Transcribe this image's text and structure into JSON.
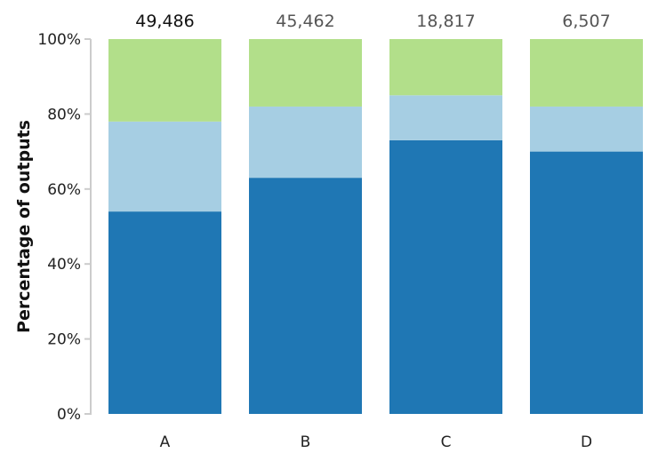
{
  "chart_data": {
    "type": "bar",
    "stacked": true,
    "normalized": true,
    "categories": [
      "A",
      "B",
      "C",
      "D"
    ],
    "totals": [
      "49,486",
      "45,462",
      "18,817",
      "6,507"
    ],
    "series": [
      {
        "values": [
          54,
          63,
          73,
          70
        ],
        "color": "#1f77b4"
      },
      {
        "values": [
          24,
          19,
          12,
          12
        ],
        "color": "#a6cee3"
      },
      {
        "values": [
          22,
          18,
          15,
          18
        ],
        "color": "#b2df8a"
      }
    ],
    "ylabel": "Percentage of outputs",
    "yticks": [
      "0%",
      "20%",
      "40%",
      "60%",
      "80%",
      "100%"
    ],
    "ylim": [
      0,
      100
    ],
    "grid": false
  }
}
